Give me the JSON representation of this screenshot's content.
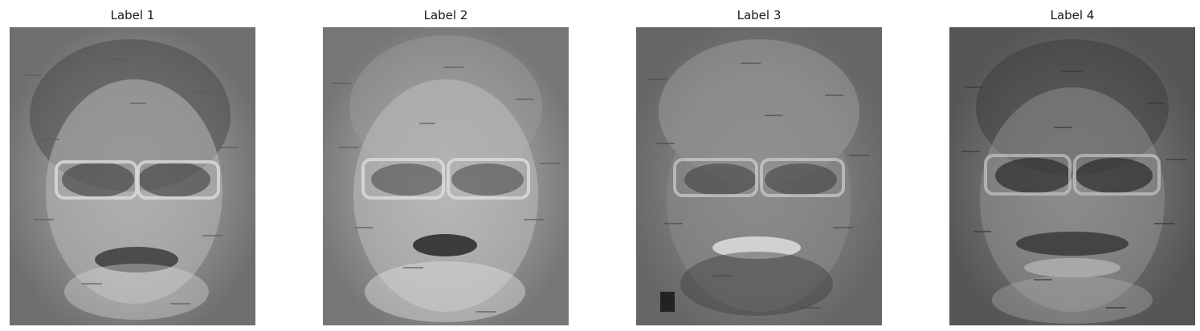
{
  "panels": [
    {
      "title": "Label 1",
      "image": "grayscale-face-reconstruction",
      "tone": "light"
    },
    {
      "title": "Label 2",
      "image": "grayscale-face-reconstruction",
      "tone": "light"
    },
    {
      "title": "Label 3",
      "image": "grayscale-face-reconstruction",
      "tone": "mid"
    },
    {
      "title": "Label 4",
      "image": "grayscale-face-reconstruction",
      "tone": "dark"
    }
  ]
}
